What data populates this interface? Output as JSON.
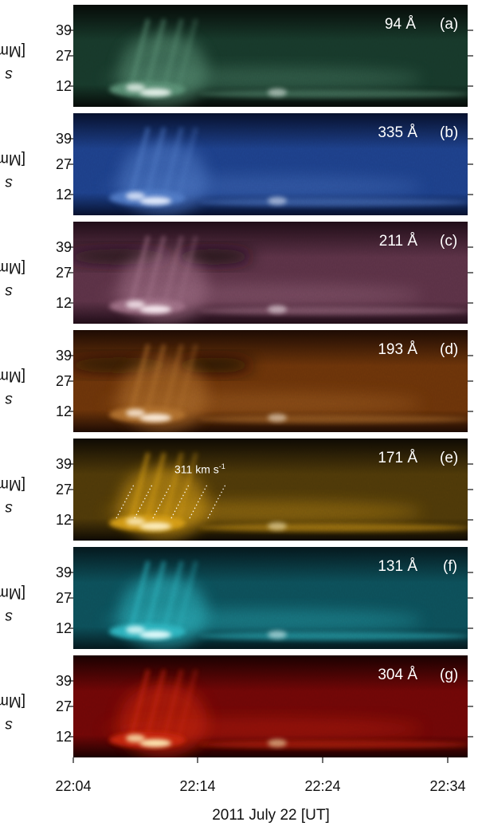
{
  "figure": {
    "x_axis": {
      "label": "2011 July 22 [UT]",
      "ticks": [
        "22:04",
        "22:14",
        "22:24",
        "22:34"
      ]
    },
    "y_axis": {
      "symbol": "s",
      "unit": "[Mm]",
      "ticks": [
        "39",
        "27",
        "12"
      ]
    },
    "panels": [
      {
        "id": "a",
        "wavelength": "94 Å",
        "panel_label": "(a)",
        "colors": [
          "#050a07",
          "#17382a",
          "#5a8f74",
          "#eaf5ee"
        ]
      },
      {
        "id": "b",
        "wavelength": "335 Å",
        "panel_label": "(b)",
        "colors": [
          "#06102c",
          "#1d3f88",
          "#4f78c4",
          "#eaf1ff"
        ]
      },
      {
        "id": "c",
        "wavelength": "211 Å",
        "panel_label": "(c)",
        "colors": [
          "#1f0c17",
          "#5a3145",
          "#9d6e84",
          "#fbeef4"
        ]
      },
      {
        "id": "d",
        "wavelength": "193 Å",
        "panel_label": "(d)",
        "colors": [
          "#1c0a02",
          "#6a3309",
          "#b0702d",
          "#fff1e0"
        ]
      },
      {
        "id": "e",
        "wavelength": "171 Å",
        "panel_label": "(e)",
        "speed": "311 km s",
        "speed_exp": "-1",
        "colors": [
          "#0d0902",
          "#4d3808",
          "#d79d14",
          "#fff2c4"
        ]
      },
      {
        "id": "f",
        "wavelength": "131 Å",
        "panel_label": "(f)",
        "colors": [
          "#04171c",
          "#0c4e58",
          "#2fb6c1",
          "#eaffff"
        ]
      },
      {
        "id": "g",
        "wavelength": "304 Å",
        "panel_label": "(g)",
        "colors": [
          "#190000",
          "#6e0606",
          "#c8280c",
          "#fff1b8"
        ]
      }
    ]
  }
}
